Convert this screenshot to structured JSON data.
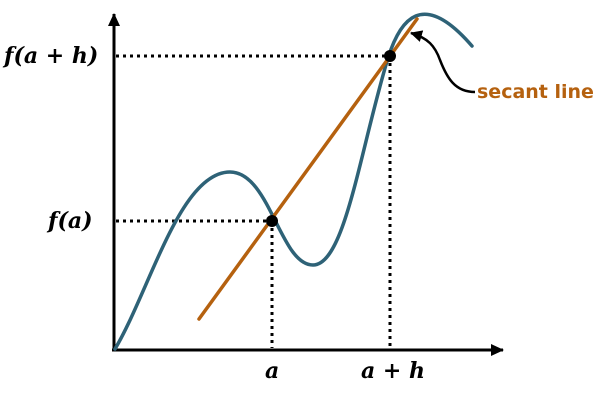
{
  "labels": {
    "fa": "f(a)",
    "fah": "f(a + h)",
    "a": "a",
    "ah": "a + h",
    "annotation": "secant line"
  },
  "colors": {
    "curve": "#2E6277",
    "secant": "#B5610F",
    "axes": "#000000",
    "guides": "#000000",
    "points": "#000000",
    "annotation": "#B5610F"
  }
}
